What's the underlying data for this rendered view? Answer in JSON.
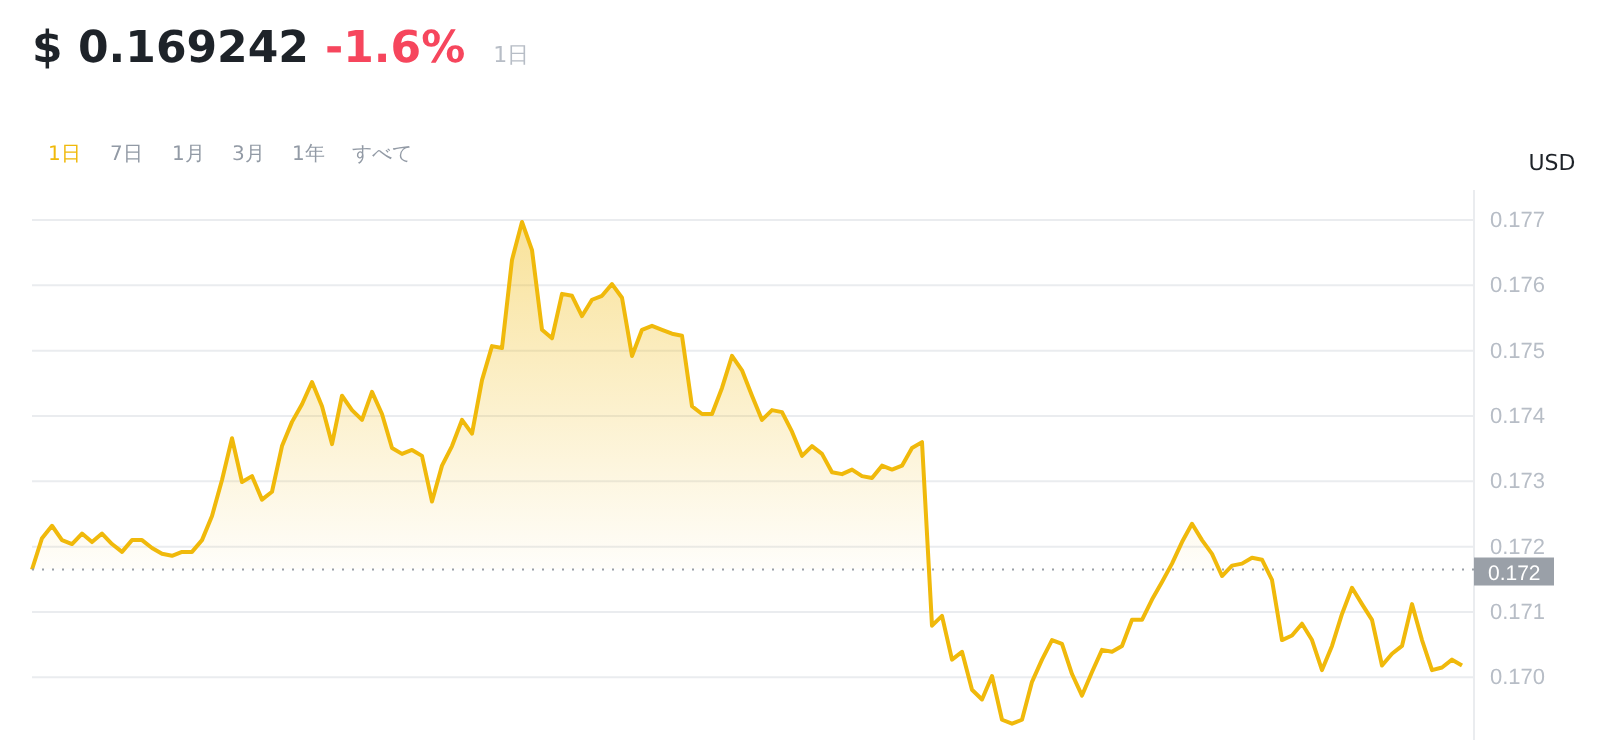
{
  "chart_data": {
    "type": "area",
    "title": "$ 0.169242",
    "subtitle": "-1.6%",
    "ylabel": "USD",
    "annotations": [
      "1日",
      "1日",
      "7日",
      "1月",
      "3月",
      "1年",
      "すべて"
    ],
    "categories": [
      null,
      null,
      null,
      null,
      null,
      null,
      null,
      null,
      null,
      null,
      null,
      null,
      null,
      null,
      null,
      null,
      null,
      null,
      null,
      null,
      null,
      null,
      null,
      null,
      null,
      null,
      null,
      null,
      null,
      null,
      null,
      null,
      null,
      null,
      null,
      null,
      null,
      null,
      null,
      null,
      null,
      null,
      null,
      null,
      null,
      null,
      null,
      null,
      null,
      null,
      null,
      null,
      null,
      null,
      null,
      null,
      null,
      null,
      null,
      null,
      null,
      null,
      null,
      null,
      null,
      null,
      null,
      null,
      null,
      null,
      null,
      null,
      null,
      null,
      null,
      null,
      null,
      null,
      null,
      null,
      null,
      null,
      null,
      null,
      null,
      null,
      null,
      null,
      null,
      null,
      null,
      null,
      null,
      null,
      null,
      null,
      null,
      null,
      null,
      null,
      null,
      null,
      null,
      null,
      null,
      null,
      null,
      null,
      null,
      null,
      null,
      null,
      null,
      null,
      null,
      null,
      null,
      null,
      null,
      null,
      null,
      null,
      null,
      null,
      null,
      null,
      null,
      null,
      null,
      null,
      null,
      null,
      null,
      null,
      null,
      null,
      null,
      null,
      null,
      null,
      null,
      null,
      null,
      null
    ],
    "series": [
      {
        "color": "#f0b90b",
        "values": [
          0.17165,
          0.17213,
          0.17232,
          0.1721,
          0.17204,
          0.1722,
          0.17207,
          0.1722,
          0.17204,
          0.17192,
          0.1721,
          0.1721,
          0.17198,
          0.17189,
          0.17186,
          0.17192,
          0.17192,
          0.1721,
          0.17247,
          0.17302,
          0.17366,
          0.17299,
          0.17308,
          0.17272,
          0.17284,
          0.17354,
          0.17391,
          0.17418,
          0.17452,
          0.17415,
          0.17357,
          0.17431,
          0.17409,
          0.17394,
          0.17437,
          0.17403,
          0.17351,
          0.17342,
          0.17348,
          0.17339,
          0.17269,
          0.17324,
          0.17354,
          0.17394,
          0.17373,
          0.17455,
          0.17507,
          0.17504,
          0.17639,
          0.17697,
          0.17654,
          0.17532,
          0.17519,
          0.17587,
          0.17584,
          0.17553,
          0.17578,
          0.17584,
          0.17602,
          0.17581,
          0.17492,
          0.17532,
          0.17538,
          0.17532,
          0.17526,
          0.17523,
          0.17415,
          0.17403,
          0.17403,
          0.17443,
          0.17492,
          0.1747,
          0.17431,
          0.17394,
          0.17409,
          0.17406,
          0.17376,
          0.17339,
          0.17354,
          0.17342,
          0.17314,
          0.17311,
          0.17318,
          0.17308,
          0.17305,
          0.17324,
          0.17318,
          0.17324,
          0.17351,
          0.1736,
          0.17079,
          0.17094,
          0.17027,
          0.17039,
          0.16981,
          0.16966,
          0.17002,
          0.16935,
          0.16929,
          0.16935,
          0.16993,
          0.17027,
          0.17057,
          0.17051,
          0.17005,
          0.16972,
          0.17008,
          0.17042,
          0.17039,
          0.17048,
          0.17088,
          0.17088,
          0.17119,
          0.17146,
          0.17174,
          0.17207,
          0.17235,
          0.1721,
          0.17189,
          0.17155,
          0.17171,
          0.17174,
          0.17183,
          0.1718,
          0.17149,
          0.17057,
          0.17064,
          0.17082,
          0.17057,
          0.17011,
          0.17048,
          0.17097,
          0.17137,
          0.17112,
          0.17088,
          0.17018,
          0.17036,
          0.17048,
          0.17112,
          0.17057,
          0.17011,
          0.17015,
          0.17027,
          0.17018
        ]
      }
    ],
    "ylim": [
      0.16904,
      0.17746
    ],
    "yticks": [
      {
        "value": 0.17,
        "label": "0.170"
      },
      0.171,
      0.172,
      0.173,
      0.174,
      0.175,
      0.176,
      0.177
    ],
    "ref_lines": [
      {
        "axis": "y",
        "value": 0.17165,
        "label": "0.172",
        "color": "#9aa0a8",
        "line_style": "dotted"
      }
    ],
    "grid": "y",
    "marker": "none",
    "line_style": "solid"
  }
}
